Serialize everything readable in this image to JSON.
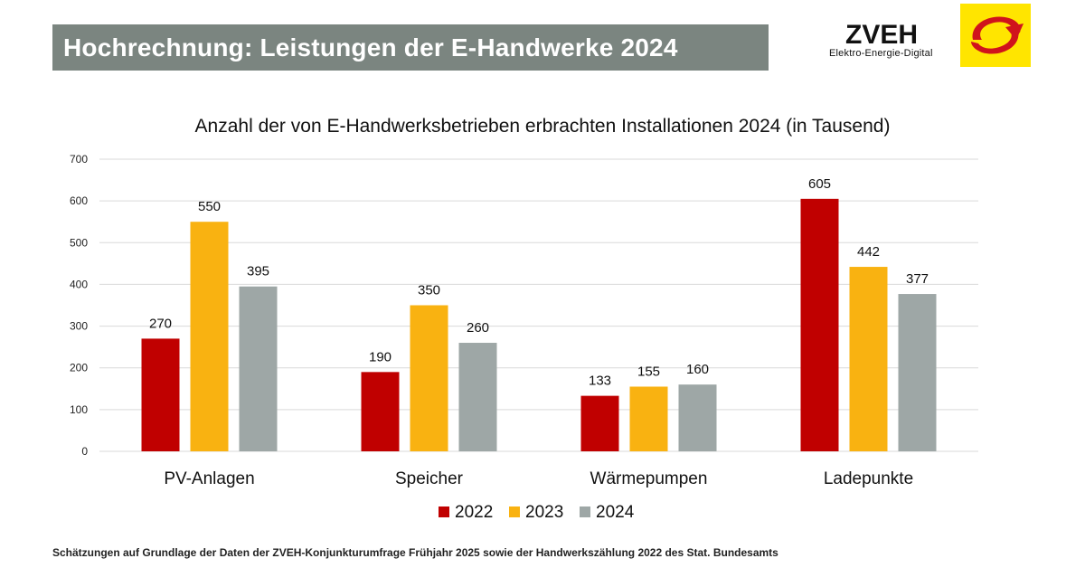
{
  "header": {
    "title": "Hochrechnung: Leistungen der E-Handwerke 2024"
  },
  "logo": {
    "name": "ZVEH",
    "tagline": "Elektro-Energie-Digital",
    "mark_color": "#ffe500",
    "arrow_color": "#d0131c"
  },
  "chart_data": {
    "type": "bar",
    "title": "Anzahl der von E-Handwerksbetrieben erbrachten Installationen 2024 (in Tausend)",
    "xlabel": "",
    "ylabel": "",
    "categories": [
      "PV-Anlagen",
      "Speicher",
      "Wärmepumpen",
      "Ladepunkte"
    ],
    "series": [
      {
        "name": "2022",
        "color": "#c00000",
        "values": [
          270,
          190,
          133,
          605
        ]
      },
      {
        "name": "2023",
        "color": "#f9b211",
        "values": [
          550,
          350,
          155,
          442
        ]
      },
      {
        "name": "2024",
        "color": "#9ea7a6",
        "values": [
          395,
          260,
          160,
          377
        ]
      }
    ],
    "ylim": [
      0,
      700
    ],
    "yticks": [
      0,
      100,
      200,
      300,
      400,
      500,
      600,
      700
    ],
    "grid": true,
    "legend": "bottom-center",
    "data_labels": true
  },
  "footer": {
    "note": "Schätzungen auf Grundlage der Daten der ZVEH-Konjunkturumfrage Frühjahr 2025 sowie der Handwerkszählung 2022 des Stat. Bundesamts"
  }
}
